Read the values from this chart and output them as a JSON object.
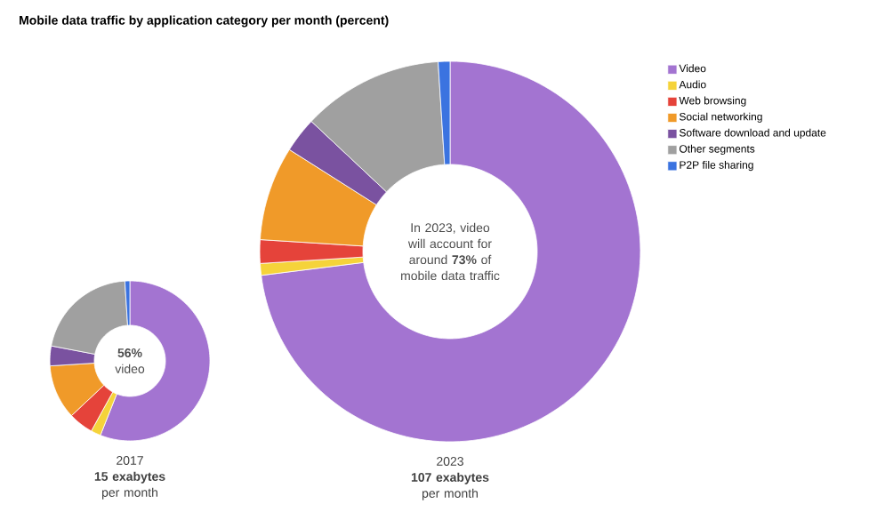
{
  "chart_data": [
    {
      "type": "donut",
      "title": "Mobile data traffic by application category per month (percent)",
      "xlabel": "2017",
      "subtitle": "**15 exabytes** per month",
      "annotations": [
        "**56%** video"
      ],
      "legend": "right",
      "categories": [
        "Video",
        "Audio",
        "Web browsing",
        "Social networking",
        "Software download and update",
        "Other segments",
        "P2P file sharing"
      ],
      "values": [
        56,
        2,
        5,
        11,
        4,
        21,
        1
      ],
      "colors": [
        "#a374d1",
        "#f5d33a",
        "#e5433a",
        "#f09a29",
        "#7a52a0",
        "#a0a0a0",
        "#3b73e0"
      ]
    },
    {
      "type": "donut",
      "xlabel": "2023",
      "subtitle": "**107 exabytes** per month",
      "annotations": [
        "In 2023, video will account for around **73%** of mobile data traffic"
      ],
      "categories": [
        null,
        null,
        null,
        null,
        null,
        null,
        null
      ],
      "values": [
        73,
        1,
        2,
        8,
        3,
        12,
        1
      ],
      "colors": [
        "#a374d1",
        "#f5d33a",
        "#e5433a",
        "#f09a29",
        "#7a52a0",
        "#a0a0a0",
        "#3b73e0"
      ]
    }
  ]
}
